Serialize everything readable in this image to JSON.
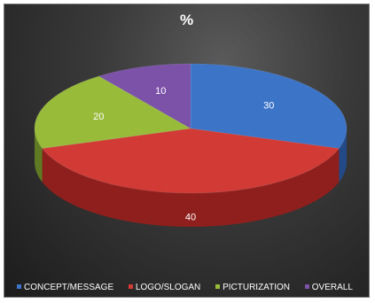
{
  "chart_data": {
    "type": "pie",
    "title": "%",
    "categories": [
      "CONCEPT/MESSAGE",
      "LOGO/SLOGAN",
      "PICTURIZATION",
      "OVERALL"
    ],
    "values": [
      30,
      40,
      20,
      10
    ],
    "data_labels": [
      "30",
      "40",
      "20",
      "10"
    ],
    "colors": [
      "#3c74c8",
      "#d23a36",
      "#98bb3a",
      "#7b52a8"
    ],
    "side_colors": [
      "#234a86",
      "#8f1f1c",
      "#5f7a22",
      "#4d316b"
    ],
    "legend_position": "bottom",
    "style": "3d-pie"
  }
}
